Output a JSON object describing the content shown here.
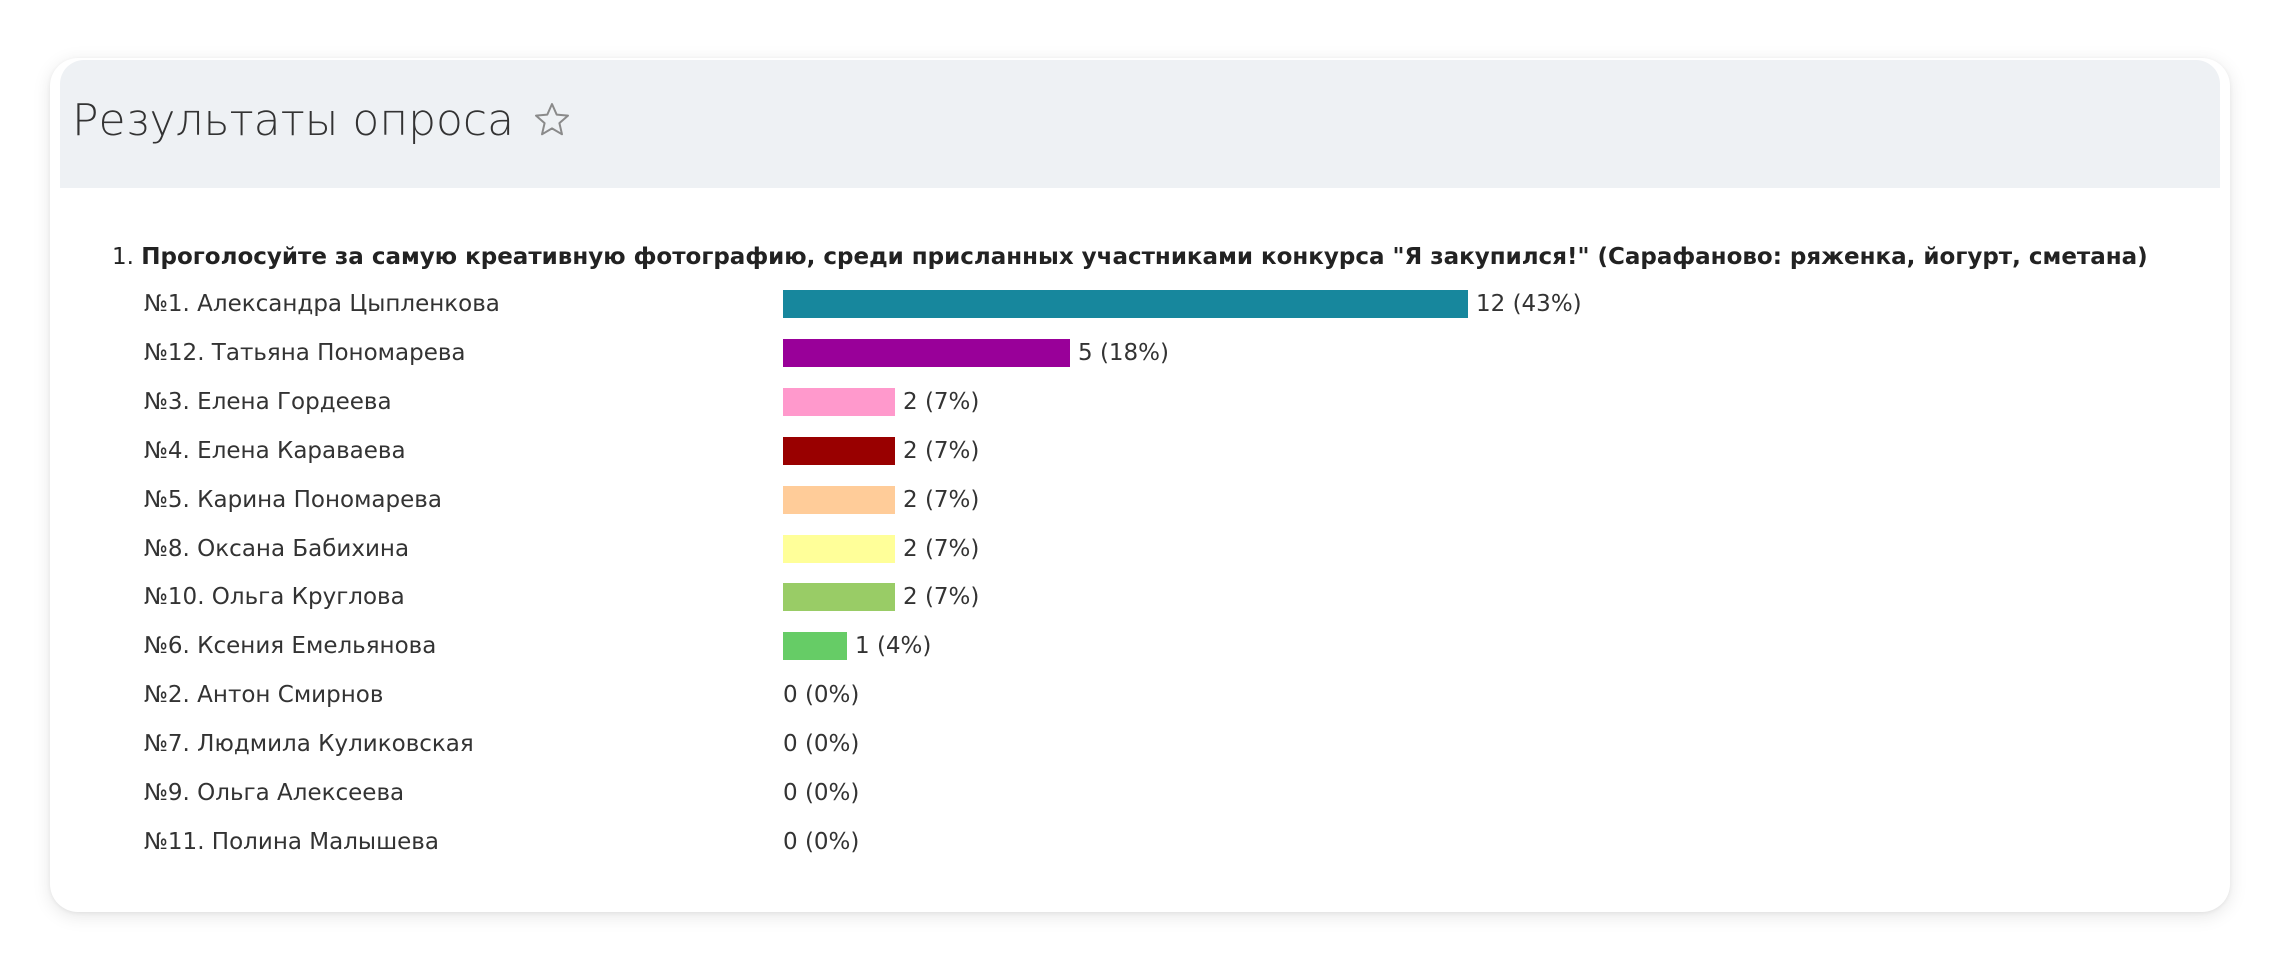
{
  "header": {
    "title": "Результаты опроса",
    "star_icon": "star-outline-icon"
  },
  "question": {
    "number": "1.",
    "text": "Проголосуйте за самую креативную фотографию, среди присланных участниками конкурса \"Я закупился!\" (Сарафаново: ряженка, йогурт, сметана)"
  },
  "results": [
    {
      "label": "№1. Александра Цыпленкова",
      "count": 12,
      "percent": 43,
      "value_text": "12 (43%)",
      "color": "#17879d"
    },
    {
      "label": "№12. Татьяна Пономарева",
      "count": 5,
      "percent": 18,
      "value_text": "5 (18%)",
      "color": "#990099"
    },
    {
      "label": "№3. Елена Гордеева",
      "count": 2,
      "percent": 7,
      "value_text": "2 (7%)",
      "color": "#ff99cc"
    },
    {
      "label": "№4. Елена Караваева",
      "count": 2,
      "percent": 7,
      "value_text": "2 (7%)",
      "color": "#990000"
    },
    {
      "label": "№5. Карина Пономарева",
      "count": 2,
      "percent": 7,
      "value_text": "2 (7%)",
      "color": "#ffcc99"
    },
    {
      "label": "№8. Оксана Бабихина",
      "count": 2,
      "percent": 7,
      "value_text": "2 (7%)",
      "color": "#ffff99"
    },
    {
      "label": "№10. Ольга Круглова",
      "count": 2,
      "percent": 7,
      "value_text": "2 (7%)",
      "color": "#99cc66"
    },
    {
      "label": "№6. Ксения Емельянова",
      "count": 1,
      "percent": 4,
      "value_text": "1 (4%)",
      "color": "#66cc66"
    },
    {
      "label": "№2. Антон Смирнов",
      "count": 0,
      "percent": 0,
      "value_text": "0 (0%)",
      "color": "#cccccc"
    },
    {
      "label": "№7. Людмила Куликовская",
      "count": 0,
      "percent": 0,
      "value_text": "0 (0%)",
      "color": "#cccccc"
    },
    {
      "label": "№9. Ольга Алексеева",
      "count": 0,
      "percent": 0,
      "value_text": "0 (0%)",
      "color": "#cccccc"
    },
    {
      "label": "№11. Полина Малышева",
      "count": 0,
      "percent": 0,
      "value_text": "0 (0%)",
      "color": "#cccccc"
    }
  ]
}
